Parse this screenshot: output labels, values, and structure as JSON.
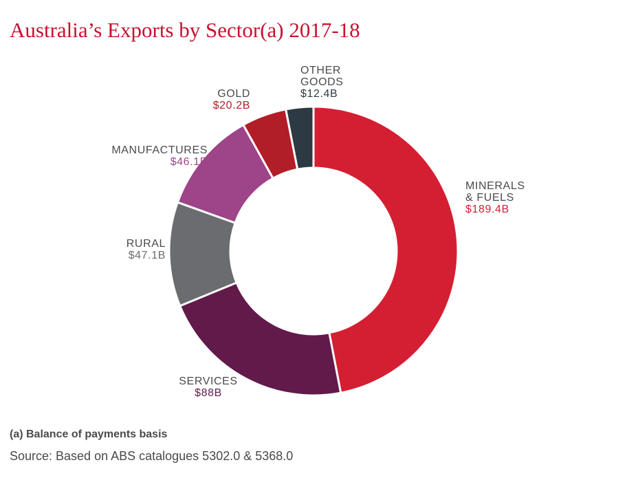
{
  "title": "Australia’s Exports by Sector(a) 2017-18",
  "footnote": "(a) Balance of payments basis",
  "source": "Source: Based on ABS catalogues 5302.0 & 5368.0",
  "chart_data": {
    "type": "pie",
    "title": "Australia’s Exports by Sector(a) 2017-18",
    "unit": "$B",
    "slices": [
      {
        "label_lines": [
          "MINERALS",
          "& FUELS"
        ],
        "value": 189.4,
        "value_label": "$189.4B",
        "color": "#d41f33",
        "label_color": "#d41f33"
      },
      {
        "label_lines": [
          "SERVICES"
        ],
        "value": 88,
        "value_label": "$88B",
        "color": "#611a4a",
        "label_color": "#611a4a"
      },
      {
        "label_lines": [
          "RURAL"
        ],
        "value": 47.1,
        "value_label": "$47.1B",
        "color": "#6b6c70",
        "label_color": "#6b6c70"
      },
      {
        "label_lines": [
          "MANUFACTURES"
        ],
        "value": 46.1,
        "value_label": "$46.1B",
        "color": "#9e4488",
        "label_color": "#9e4488"
      },
      {
        "label_lines": [
          "GOLD"
        ],
        "value": 20.2,
        "value_label": "$20.2B",
        "color": "#b21e28",
        "label_color": "#b21e28"
      },
      {
        "label_lines": [
          "OTHER",
          "GOODS"
        ],
        "value": 12.4,
        "value_label": "$12.4B",
        "color": "#2d3a43",
        "label_color": "#2d3a43"
      }
    ]
  }
}
